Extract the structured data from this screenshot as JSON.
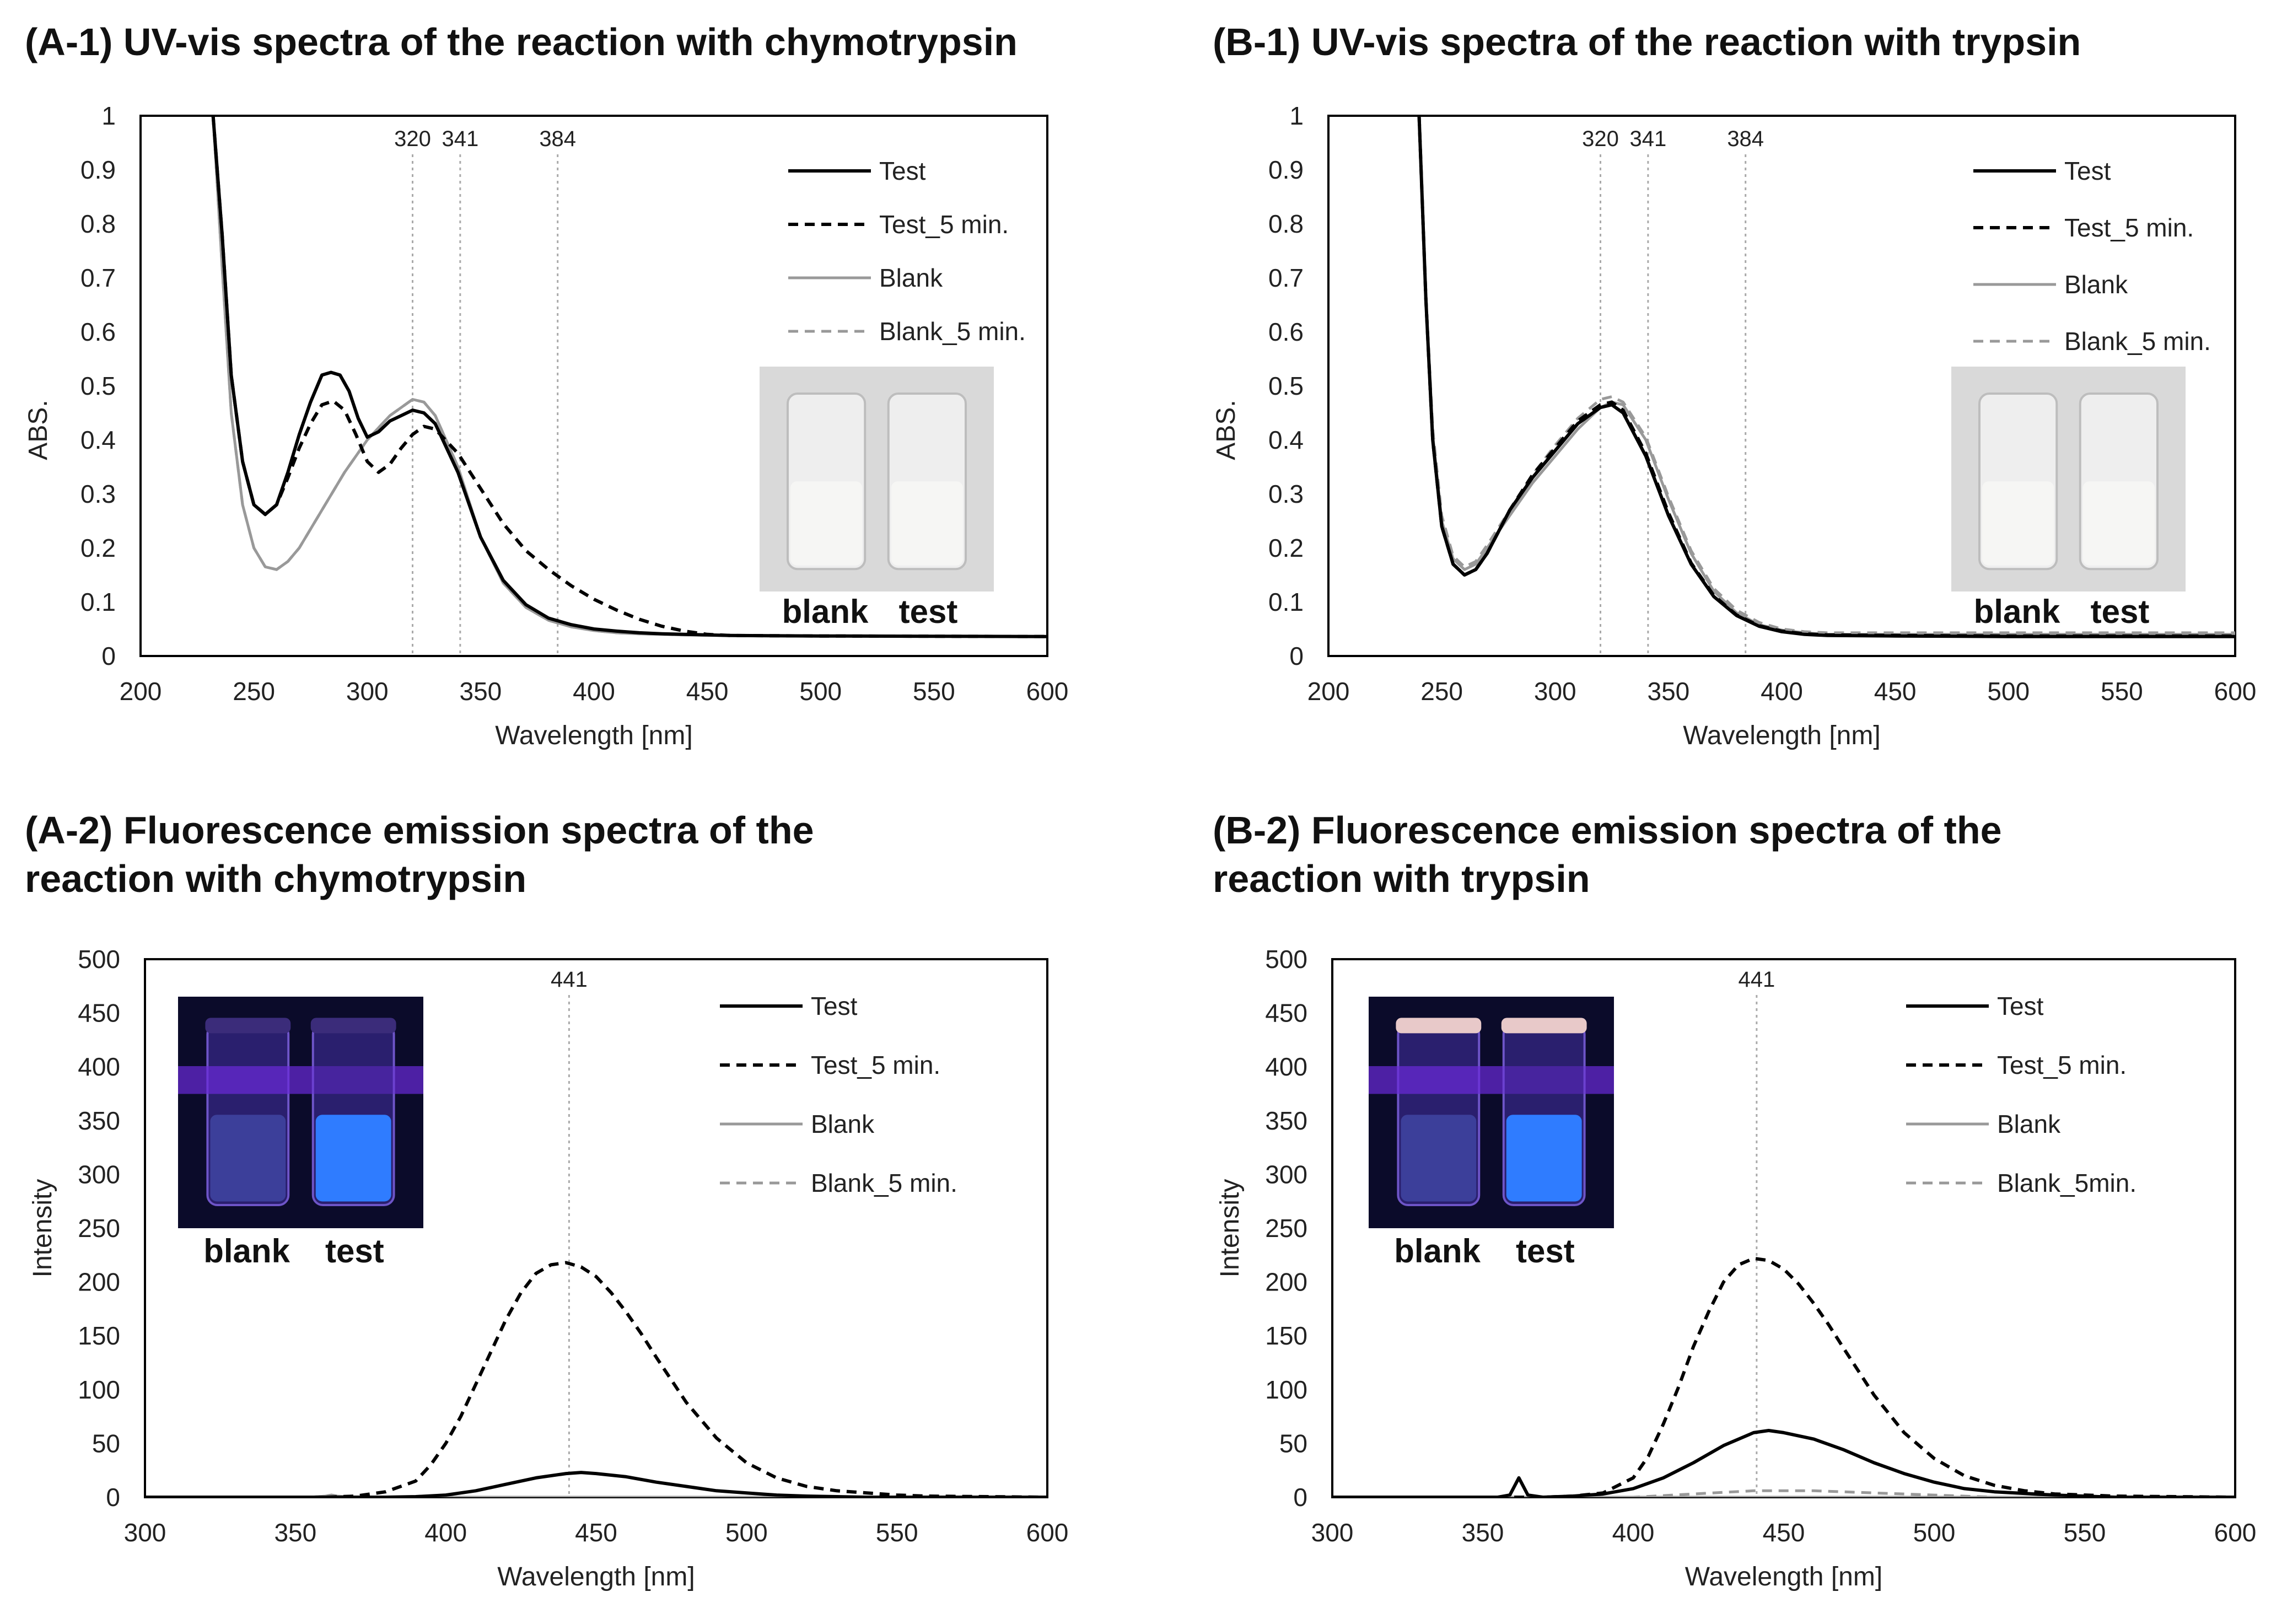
{
  "chart_data": [
    {
      "id": "A1",
      "type": "line",
      "title": "(A-1) UV-vis spectra of the reaction with chymotrypsin",
      "xlabel": "Wavelength [nm]",
      "ylabel": "ABS.",
      "xlim": [
        200,
        600
      ],
      "ylim": [
        0,
        1
      ],
      "xticks": [
        "200",
        "250",
        "300",
        "350",
        "400",
        "450",
        "500",
        "550",
        "600"
      ],
      "yticks": [
        "0",
        "0.1",
        "0.2",
        "0.3",
        "0.4",
        "0.5",
        "0.6",
        "0.7",
        "0.8",
        "0.9",
        "1"
      ],
      "vlines": [
        {
          "x": 320,
          "label": "320"
        },
        {
          "x": 341,
          "label": "341"
        },
        {
          "x": 384,
          "label": "384"
        }
      ],
      "legend_position": "top-right",
      "photo": {
        "labels": [
          "blank",
          "test"
        ],
        "style": "daylight"
      },
      "series": [
        {
          "name": "Test",
          "color": "#000000",
          "dash": false,
          "x": [
            232,
            236,
            240,
            245,
            250,
            255,
            260,
            265,
            270,
            275,
            280,
            284,
            288,
            292,
            296,
            300,
            305,
            310,
            315,
            320,
            325,
            330,
            340,
            350,
            360,
            370,
            380,
            390,
            400,
            410,
            420,
            430,
            440,
            450,
            460,
            500,
            600
          ],
          "y": [
            1.0,
            0.78,
            0.52,
            0.36,
            0.28,
            0.262,
            0.28,
            0.34,
            0.41,
            0.47,
            0.52,
            0.525,
            0.52,
            0.49,
            0.44,
            0.405,
            0.415,
            0.435,
            0.445,
            0.455,
            0.45,
            0.43,
            0.34,
            0.22,
            0.14,
            0.095,
            0.07,
            0.058,
            0.05,
            0.046,
            0.043,
            0.041,
            0.04,
            0.039,
            0.038,
            0.037,
            0.036
          ]
        },
        {
          "name": "Test_5 min.",
          "color": "#000000",
          "dash": true,
          "x": [
            232,
            236,
            240,
            245,
            250,
            255,
            260,
            265,
            270,
            275,
            280,
            285,
            290,
            295,
            300,
            305,
            310,
            315,
            320,
            325,
            330,
            340,
            350,
            360,
            370,
            380,
            390,
            400,
            410,
            420,
            430,
            440,
            450,
            460,
            500,
            600
          ],
          "y": [
            1.0,
            0.78,
            0.52,
            0.36,
            0.28,
            0.262,
            0.28,
            0.33,
            0.385,
            0.43,
            0.465,
            0.472,
            0.455,
            0.41,
            0.36,
            0.34,
            0.355,
            0.385,
            0.41,
            0.425,
            0.42,
            0.375,
            0.31,
            0.245,
            0.195,
            0.16,
            0.13,
            0.105,
            0.085,
            0.068,
            0.055,
            0.046,
            0.04,
            0.038,
            0.037,
            0.036
          ]
        },
        {
          "name": "Blank",
          "color": "#999999",
          "dash": false,
          "x": [
            232,
            236,
            240,
            245,
            250,
            255,
            260,
            265,
            270,
            280,
            290,
            300,
            310,
            320,
            325,
            330,
            340,
            350,
            360,
            370,
            380,
            390,
            400,
            410,
            420,
            440,
            460,
            500,
            600
          ],
          "y": [
            1.0,
            0.72,
            0.45,
            0.28,
            0.2,
            0.165,
            0.16,
            0.175,
            0.2,
            0.27,
            0.34,
            0.4,
            0.445,
            0.475,
            0.47,
            0.445,
            0.35,
            0.22,
            0.135,
            0.09,
            0.066,
            0.054,
            0.047,
            0.043,
            0.041,
            0.039,
            0.038,
            0.037,
            0.036
          ]
        },
        {
          "name": "Blank_5 min.",
          "color": "#999999",
          "dash": true,
          "x": [
            232,
            236,
            240,
            245,
            250,
            255,
            260,
            265,
            270,
            280,
            290,
            300,
            310,
            320,
            325,
            330,
            340,
            350,
            360,
            370,
            380,
            390,
            400,
            410,
            420,
            440,
            460,
            500,
            600
          ],
          "y": [
            1.0,
            0.72,
            0.45,
            0.28,
            0.2,
            0.165,
            0.16,
            0.175,
            0.2,
            0.27,
            0.34,
            0.4,
            0.445,
            0.475,
            0.47,
            0.445,
            0.35,
            0.22,
            0.135,
            0.09,
            0.066,
            0.054,
            0.047,
            0.043,
            0.041,
            0.039,
            0.038,
            0.037,
            0.036
          ]
        }
      ]
    },
    {
      "id": "B1",
      "type": "line",
      "title": "(B-1) UV-vis spectra of the reaction with trypsin",
      "xlabel": "Wavelength [nm]",
      "ylabel": "ABS.",
      "xlim": [
        200,
        600
      ],
      "ylim": [
        0,
        1
      ],
      "xticks": [
        "200",
        "250",
        "300",
        "350",
        "400",
        "450",
        "500",
        "550",
        "600"
      ],
      "yticks": [
        "0",
        "0.1",
        "0.2",
        "0.3",
        "0.4",
        "0.5",
        "0.6",
        "0.7",
        "0.8",
        "0.9",
        "1"
      ],
      "vlines": [
        {
          "x": 320,
          "label": "320"
        },
        {
          "x": 341,
          "label": "341"
        },
        {
          "x": 384,
          "label": "384"
        }
      ],
      "legend_position": "top-right",
      "photo": {
        "labels": [
          "blank",
          "test"
        ],
        "style": "daylight"
      },
      "series": [
        {
          "name": "Test",
          "color": "#000000",
          "dash": false,
          "x": [
            240,
            243,
            246,
            250,
            255,
            260,
            265,
            270,
            280,
            290,
            300,
            310,
            320,
            325,
            330,
            340,
            350,
            360,
            370,
            380,
            390,
            400,
            410,
            420,
            450,
            500,
            600
          ],
          "y": [
            1.0,
            0.66,
            0.4,
            0.24,
            0.17,
            0.15,
            0.16,
            0.19,
            0.27,
            0.33,
            0.38,
            0.43,
            0.46,
            0.465,
            0.45,
            0.37,
            0.26,
            0.17,
            0.11,
            0.075,
            0.055,
            0.045,
            0.04,
            0.038,
            0.037,
            0.036,
            0.036
          ]
        },
        {
          "name": "Test_5 min.",
          "color": "#000000",
          "dash": true,
          "x": [
            240,
            243,
            246,
            250,
            255,
            260,
            265,
            270,
            280,
            290,
            300,
            310,
            320,
            325,
            330,
            340,
            350,
            360,
            370,
            380,
            390,
            400,
            410,
            420,
            450,
            500,
            600
          ],
          "y": [
            1.0,
            0.66,
            0.4,
            0.24,
            0.17,
            0.15,
            0.16,
            0.19,
            0.27,
            0.335,
            0.385,
            0.435,
            0.465,
            0.47,
            0.455,
            0.375,
            0.265,
            0.172,
            0.112,
            0.076,
            0.056,
            0.046,
            0.041,
            0.039,
            0.038,
            0.037,
            0.037
          ]
        },
        {
          "name": "Blank",
          "color": "#999999",
          "dash": false,
          "x": [
            240,
            243,
            246,
            250,
            255,
            260,
            265,
            270,
            280,
            290,
            300,
            310,
            320,
            325,
            330,
            340,
            350,
            360,
            370,
            380,
            390,
            400,
            410,
            420,
            450,
            500,
            600
          ],
          "y": [
            1.0,
            0.66,
            0.41,
            0.25,
            0.18,
            0.16,
            0.17,
            0.2,
            0.26,
            0.32,
            0.37,
            0.42,
            0.46,
            0.47,
            0.465,
            0.4,
            0.29,
            0.19,
            0.12,
            0.08,
            0.058,
            0.048,
            0.043,
            0.04,
            0.04,
            0.04,
            0.04
          ]
        },
        {
          "name": "Blank_5 min.",
          "color": "#999999",
          "dash": true,
          "x": [
            240,
            243,
            246,
            250,
            255,
            260,
            265,
            270,
            280,
            290,
            300,
            310,
            320,
            325,
            330,
            340,
            350,
            360,
            370,
            380,
            390,
            400,
            410,
            420,
            450,
            500,
            600
          ],
          "y": [
            1.0,
            0.67,
            0.42,
            0.26,
            0.185,
            0.165,
            0.175,
            0.205,
            0.27,
            0.335,
            0.39,
            0.44,
            0.475,
            0.48,
            0.47,
            0.405,
            0.295,
            0.195,
            0.125,
            0.085,
            0.062,
            0.05,
            0.045,
            0.043,
            0.043,
            0.043,
            0.043
          ]
        }
      ]
    },
    {
      "id": "A2",
      "type": "line",
      "title": "(A-2) Fluorescence emission spectra of the reaction with chymotrypsin",
      "title_lines": [
        "(A-2) Fluorescence emission spectra of the",
        "reaction with chymotrypsin"
      ],
      "xlabel": "Wavelength [nm]",
      "ylabel": "Intensity",
      "xlim": [
        300,
        600
      ],
      "ylim": [
        0,
        500
      ],
      "xticks": [
        "300",
        "350",
        "400",
        "450",
        "500",
        "550",
        "600"
      ],
      "yticks": [
        "0",
        "50",
        "100",
        "150",
        "200",
        "250",
        "300",
        "350",
        "400",
        "450",
        "500"
      ],
      "vlines": [
        {
          "x": 441,
          "label": "441"
        }
      ],
      "legend_position": "top-right",
      "photo": {
        "labels": [
          "blank",
          "test"
        ],
        "style": "uv"
      },
      "series": [
        {
          "name": "Test",
          "color": "#000000",
          "dash": false,
          "x": [
            300,
            380,
            390,
            400,
            410,
            420,
            430,
            440,
            445,
            450,
            460,
            470,
            480,
            490,
            500,
            510,
            520,
            540,
            600
          ],
          "y": [
            0,
            0,
            0.5,
            2,
            6,
            12,
            18,
            22,
            23,
            22,
            19,
            14,
            10,
            6,
            4,
            2,
            1,
            0,
            0
          ]
        },
        {
          "name": "Test_5 min.",
          "color": "#000000",
          "dash": true,
          "x": [
            300,
            360,
            370,
            380,
            390,
            395,
            400,
            405,
            410,
            415,
            420,
            425,
            430,
            435,
            440,
            445,
            450,
            455,
            460,
            465,
            470,
            480,
            490,
            500,
            510,
            520,
            530,
            540,
            550,
            560,
            600
          ],
          "y": [
            0,
            0,
            1,
            5,
            15,
            30,
            50,
            75,
            105,
            135,
            165,
            190,
            208,
            216,
            218,
            214,
            205,
            190,
            172,
            152,
            130,
            88,
            55,
            32,
            18,
            10,
            6,
            4,
            2,
            1,
            0
          ]
        },
        {
          "name": "Blank",
          "color": "#999999",
          "dash": false,
          "x": [
            300,
            355,
            360,
            362,
            364,
            370,
            600
          ],
          "y": [
            0,
            0,
            1,
            2,
            1,
            0,
            0
          ]
        },
        {
          "name": "Blank_5 min.",
          "color": "#999999",
          "dash": true,
          "x": [
            300,
            355,
            360,
            362,
            364,
            370,
            600
          ],
          "y": [
            0,
            0,
            1,
            2,
            1,
            0,
            0
          ]
        }
      ]
    },
    {
      "id": "B2",
      "type": "line",
      "title": "(B-2) Fluorescence emission spectra of the reaction with trypsin",
      "title_lines": [
        "(B-2) Fluorescence emission spectra of the",
        "reaction with trypsin"
      ],
      "xlabel": "Wavelength [nm]",
      "ylabel": "Intensity",
      "xlim": [
        300,
        600
      ],
      "ylim": [
        0,
        500
      ],
      "xticks": [
        "300",
        "350",
        "400",
        "450",
        "500",
        "550",
        "600"
      ],
      "yticks": [
        "0",
        "50",
        "100",
        "150",
        "200",
        "250",
        "300",
        "350",
        "400",
        "450",
        "500"
      ],
      "vlines": [
        {
          "x": 441,
          "label": "441"
        }
      ],
      "legend_position": "top-right",
      "photo": {
        "labels": [
          "blank",
          "test"
        ],
        "style": "uv"
      },
      "legend_names": [
        "Test",
        "Test_5 min.",
        "Blank",
        "Blank_5min."
      ],
      "series": [
        {
          "name": "Test",
          "color": "#000000",
          "dash": false,
          "x": [
            300,
            355,
            359,
            362,
            365,
            370,
            380,
            390,
            400,
            410,
            420,
            430,
            440,
            445,
            450,
            460,
            470,
            480,
            490,
            500,
            510,
            520,
            540,
            560,
            600
          ],
          "y": [
            0,
            0,
            2,
            18,
            2,
            0,
            1,
            3,
            8,
            18,
            32,
            48,
            60,
            62,
            60,
            54,
            44,
            32,
            22,
            14,
            8,
            5,
            2,
            0,
            0
          ]
        },
        {
          "name": "Test_5 min.",
          "color": "#000000",
          "dash": true,
          "x": [
            300,
            370,
            380,
            390,
            400,
            405,
            410,
            415,
            420,
            425,
            430,
            435,
            440,
            445,
            450,
            455,
            460,
            465,
            470,
            480,
            490,
            500,
            510,
            520,
            530,
            540,
            560,
            600
          ],
          "y": [
            0,
            0,
            1,
            4,
            18,
            38,
            68,
            102,
            140,
            172,
            200,
            216,
            222,
            220,
            212,
            198,
            180,
            160,
            138,
            95,
            60,
            36,
            20,
            11,
            6,
            3,
            1,
            0
          ]
        },
        {
          "name": "Blank",
          "color": "#999999",
          "dash": false,
          "x": [
            300,
            600
          ],
          "y": [
            0,
            0
          ]
        },
        {
          "name": "Blank_5min.",
          "color": "#999999",
          "dash": true,
          "x": [
            300,
            400,
            420,
            440,
            460,
            480,
            500,
            520,
            600
          ],
          "y": [
            0,
            0,
            3,
            6,
            6,
            4,
            2,
            0,
            0
          ]
        }
      ]
    }
  ]
}
